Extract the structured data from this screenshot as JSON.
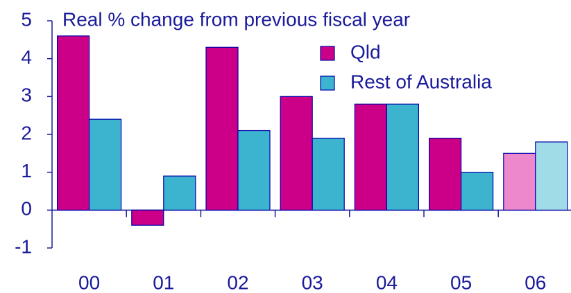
{
  "chart_data": {
    "type": "bar",
    "title": "Real % change from previous fiscal year",
    "categories": [
      "00",
      "01",
      "02",
      "03",
      "04",
      "05",
      "06"
    ],
    "series": [
      {
        "name": "Qld",
        "color": "#cc0088",
        "values": [
          4.6,
          -0.4,
          4.3,
          3.0,
          2.8,
          1.9,
          1.5
        ],
        "colors": [
          "#cc0088",
          "#cc0088",
          "#cc0088",
          "#cc0088",
          "#cc0088",
          "#cc0088",
          "#ee88cc"
        ]
      },
      {
        "name": "Rest of Australia",
        "color": "#3cb4d0",
        "values": [
          2.4,
          0.9,
          2.1,
          1.9,
          2.8,
          1.0,
          1.8
        ],
        "colors": [
          "#3cb4d0",
          "#3cb4d0",
          "#3cb4d0",
          "#3cb4d0",
          "#3cb4d0",
          "#3cb4d0",
          "#a0dce8"
        ]
      }
    ],
    "ylim": [
      -1,
      5
    ],
    "yticks": [
      -1,
      0,
      1,
      2,
      3,
      4,
      5
    ],
    "grid": false,
    "legend": "top-right"
  }
}
